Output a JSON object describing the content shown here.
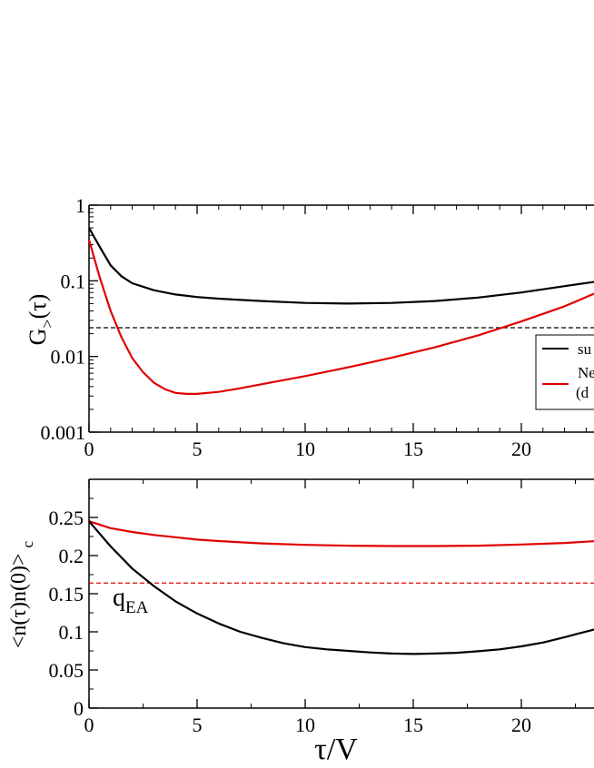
{
  "chart_data": [
    {
      "type": "line",
      "panel": "top",
      "ylabel_main": "G",
      "ylabel_sub": ">",
      "ylabel_tail": "(τ)",
      "yscale": "log",
      "xlim": [
        0,
        23.5
      ],
      "ylim": [
        0.001,
        1
      ],
      "x_ticks": [
        0,
        5,
        10,
        15,
        20
      ],
      "x_tick_labels": [
        "0",
        "5",
        "10",
        "15",
        "20"
      ],
      "y_ticks": [
        0.001,
        0.01,
        0.1,
        1
      ],
      "y_tick_labels": [
        "0.001",
        "0.01",
        "0.1",
        "1"
      ],
      "legend": {
        "position": "right",
        "entries": [
          {
            "lines": [
              "su"
            ],
            "color": "#000000"
          },
          {
            "lines": [
              "Ne",
              "(d"
            ],
            "color": "#e00000"
          }
        ]
      },
      "series": [
        {
          "color": "#000000",
          "x": [
            0,
            0.5,
            1,
            1.5,
            2,
            3,
            4,
            5,
            6,
            8,
            10,
            12,
            14,
            16,
            18,
            20,
            22,
            23.5
          ],
          "y": [
            0.5,
            0.28,
            0.16,
            0.115,
            0.093,
            0.075,
            0.066,
            0.061,
            0.058,
            0.054,
            0.051,
            0.05,
            0.051,
            0.054,
            0.06,
            0.07,
            0.085,
            0.098
          ]
        },
        {
          "color": "#e00000",
          "x": [
            0,
            0.5,
            1,
            1.5,
            2,
            2.5,
            3,
            3.5,
            4,
            4.5,
            5,
            6,
            7,
            8,
            10,
            12,
            14,
            16,
            18,
            20,
            22,
            23.5
          ],
          "y": [
            0.35,
            0.11,
            0.04,
            0.018,
            0.0095,
            0.0062,
            0.0045,
            0.0037,
            0.0033,
            0.0032,
            0.0032,
            0.0034,
            0.0038,
            0.0043,
            0.0055,
            0.0072,
            0.0096,
            0.0132,
            0.019,
            0.029,
            0.046,
            0.07
          ]
        }
      ],
      "reference_line": {
        "y": 0.024,
        "color": "#000000",
        "style": "dashed"
      }
    },
    {
      "type": "line",
      "panel": "bottom",
      "ylabel": "<n(τ)n(0)>",
      "ylabel_sub": "c",
      "xlabel": "τ/V",
      "xlim": [
        0,
        23.5
      ],
      "ylim": [
        0,
        0.3
      ],
      "x_ticks": [
        0,
        5,
        10,
        15,
        20
      ],
      "x_tick_labels": [
        "0",
        "5",
        "10",
        "15",
        "20"
      ],
      "y_ticks": [
        0,
        0.05,
        0.1,
        0.15,
        0.2,
        0.25
      ],
      "y_tick_labels": [
        "0",
        "0.05",
        "0.1",
        "0.15",
        "0.2",
        "0.25"
      ],
      "annotation": {
        "main": "q",
        "sub": "EA"
      },
      "series": [
        {
          "color": "#e00000",
          "x": [
            0,
            1,
            2,
            3,
            4,
            5,
            6,
            8,
            10,
            12,
            14,
            16,
            18,
            20,
            22,
            23.5
          ],
          "y": [
            0.245,
            0.236,
            0.231,
            0.227,
            0.224,
            0.221,
            0.219,
            0.216,
            0.214,
            0.213,
            0.2125,
            0.2125,
            0.213,
            0.2145,
            0.2165,
            0.219
          ]
        },
        {
          "color": "#000000",
          "x": [
            0,
            1,
            2,
            3,
            4,
            5,
            6,
            7,
            8,
            9,
            10,
            11,
            12,
            13,
            14,
            15,
            16,
            17,
            18,
            19,
            20,
            21,
            22,
            23.5
          ],
          "y": [
            0.245,
            0.212,
            0.183,
            0.16,
            0.14,
            0.124,
            0.111,
            0.1,
            0.092,
            0.085,
            0.08,
            0.077,
            0.075,
            0.073,
            0.0715,
            0.071,
            0.0715,
            0.0725,
            0.0745,
            0.077,
            0.081,
            0.086,
            0.093,
            0.104
          ]
        }
      ],
      "reference_line": {
        "y": 0.164,
        "color": "#e00000",
        "style": "dashed"
      }
    }
  ]
}
